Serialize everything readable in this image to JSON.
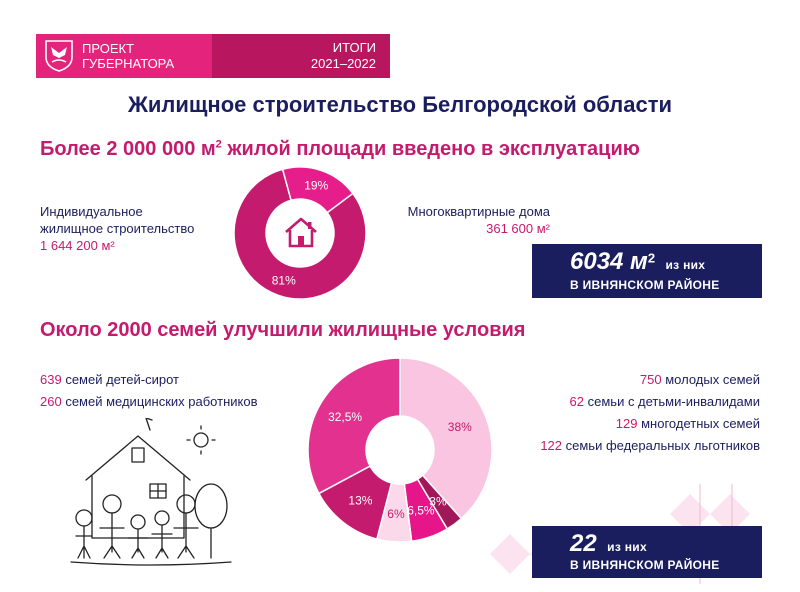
{
  "header": {
    "project_line1": "ПРОЕКТ",
    "project_line2": "ГУБЕРНАТОРА",
    "results_line1": "ИТОГИ",
    "results_line2": "2021–2022"
  },
  "title": "Жилищное строительство Белгородской области",
  "section1": {
    "heading_pre": "Более 2 000 000 м",
    "heading_sup": "2",
    "heading_post": " жилой площади введено в эксплуатацию",
    "left_label_1": "Индивидуальное",
    "left_label_2": "жилищное строительство",
    "left_value": "1 644 200 м²",
    "right_label": "Многоквартирные дома",
    "right_value": "361 600 м²",
    "box_big": "6034 м",
    "box_sup": "2",
    "box_rest": "из них",
    "box_district": "В ИВНЯНСКОМ РАЙОНЕ"
  },
  "section2": {
    "heading": "Около 2000 семей улучшили жилищные условия",
    "left_items": [
      {
        "num": "639",
        "text": " семей детей-сирот"
      },
      {
        "num": "260",
        "text": " семей медицинских работников"
      }
    ],
    "right_items": [
      {
        "num": "750",
        "text": " молодых семей"
      },
      {
        "num": "62",
        "text": " семьи с детьми-инвалидами"
      },
      {
        "num": "129",
        "text": " многодетных семей"
      },
      {
        "num": "122",
        "text": " семьи федеральных льготников"
      }
    ],
    "box_big": "22",
    "box_rest": "из них",
    "box_district": "В ИВНЯНСКОМ РАЙОНЕ"
  },
  "icons": {
    "emblem": "coat-of-arms-icon",
    "house": "house-icon",
    "drawing": "family-house-drawing"
  },
  "colors": {
    "magenta": "#e3237c",
    "dark_magenta": "#b8175f",
    "navy": "#1b1e5e",
    "pink_light": "#f7c6e0"
  },
  "chart_data": [
    {
      "type": "pie",
      "donut": true,
      "slices": [
        {
          "label": "81%",
          "value": 81,
          "color": "#c51b6e"
        },
        {
          "label": "19%",
          "value": 19,
          "color": "#e61e8c"
        }
      ]
    },
    {
      "type": "pie",
      "donut": true,
      "slices": [
        {
          "label": "38%",
          "value": 38,
          "color": "#f9c5e0"
        },
        {
          "label": "3%",
          "value": 3,
          "color": "#a0185a"
        },
        {
          "label": "6,5%",
          "value": 6.5,
          "color": "#e6168a"
        },
        {
          "label": "6%",
          "value": 6,
          "color": "#fbd9ea"
        },
        {
          "label": "13%",
          "value": 13,
          "color": "#c51b6e"
        },
        {
          "label": "32,5%",
          "value": 32.5,
          "color": "#e2318f"
        }
      ]
    }
  ]
}
